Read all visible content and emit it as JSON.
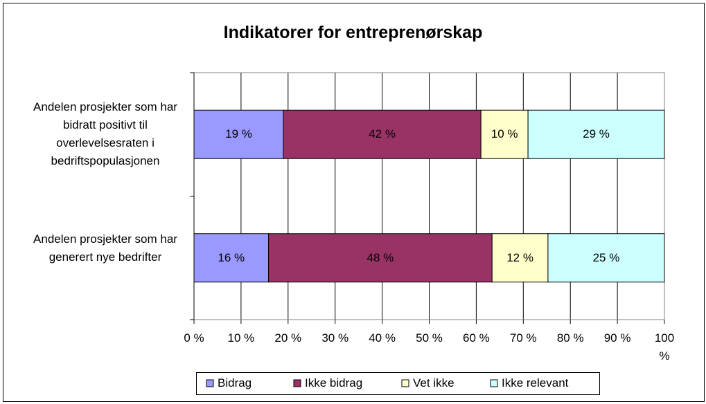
{
  "chart_data": {
    "type": "bar",
    "orientation": "horizontal",
    "stacked": "percent",
    "title": "Indikatorer for entreprenørskap",
    "categories": [
      "Andelen prosjekter som har bidratt positivt til overlevelsesraten i bedriftspopulasjonen",
      "Andelen prosjekter som har generert nye bedrifter"
    ],
    "series": [
      {
        "name": "Bidrag",
        "color": "#9999ff",
        "values": [
          19,
          16
        ],
        "value_labels": [
          "19 %",
          "16 %"
        ]
      },
      {
        "name": "Ikke bidrag",
        "color": "#993366",
        "values": [
          42,
          48
        ],
        "value_labels": [
          "42 %",
          "48 %"
        ]
      },
      {
        "name": "Vet ikke",
        "color": "#ffffcc",
        "values": [
          10,
          12
        ],
        "value_labels": [
          "10 %",
          "12 %"
        ]
      },
      {
        "name": "Ikke relevant",
        "color": "#ccffff",
        "values": [
          29,
          25
        ],
        "value_labels": [
          "29 %",
          "25 %"
        ]
      }
    ],
    "xlim": [
      0,
      100
    ],
    "xticks": [
      {
        "value": 0,
        "label": "0 %"
      },
      {
        "value": 10,
        "label": "10 %"
      },
      {
        "value": 20,
        "label": "20 %"
      },
      {
        "value": 30,
        "label": "30 %"
      },
      {
        "value": 40,
        "label": "40 %"
      },
      {
        "value": 50,
        "label": "50 %"
      },
      {
        "value": 60,
        "label": "60 %"
      },
      {
        "value": 70,
        "label": "70 %"
      },
      {
        "value": 80,
        "label": "80 %"
      },
      {
        "value": 90,
        "label": "90 %"
      },
      {
        "value": 100,
        "label": "100 %"
      }
    ],
    "grid": true,
    "legend": "bottom"
  }
}
